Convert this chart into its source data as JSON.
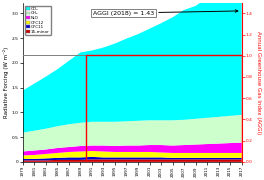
{
  "years": [
    1979,
    1981,
    1983,
    1985,
    1987,
    1989,
    1991,
    1993,
    1995,
    1997,
    1999,
    2001,
    2003,
    2005,
    2007,
    2009,
    2011,
    2013,
    2015,
    2017
  ],
  "CO2": [
    0.85,
    0.95,
    1.05,
    1.15,
    1.28,
    1.42,
    1.44,
    1.5,
    1.58,
    1.67,
    1.75,
    1.85,
    1.96,
    2.08,
    2.22,
    2.28,
    2.42,
    2.54,
    2.68,
    2.82
  ],
  "CH4": [
    0.38,
    0.4,
    0.42,
    0.44,
    0.46,
    0.47,
    0.48,
    0.48,
    0.49,
    0.49,
    0.5,
    0.5,
    0.5,
    0.51,
    0.51,
    0.52,
    0.53,
    0.54,
    0.55,
    0.56
  ],
  "N2O": [
    0.08,
    0.09,
    0.09,
    0.1,
    0.1,
    0.11,
    0.11,
    0.12,
    0.12,
    0.13,
    0.13,
    0.14,
    0.15,
    0.15,
    0.16,
    0.17,
    0.18,
    0.19,
    0.2,
    0.21
  ],
  "CFC12": [
    0.07,
    0.08,
    0.09,
    0.1,
    0.11,
    0.12,
    0.12,
    0.12,
    0.11,
    0.11,
    0.11,
    0.11,
    0.1,
    0.1,
    0.1,
    0.1,
    0.1,
    0.1,
    0.1,
    0.1
  ],
  "CFC11": [
    0.03,
    0.03,
    0.04,
    0.04,
    0.05,
    0.05,
    0.05,
    0.04,
    0.04,
    0.04,
    0.04,
    0.04,
    0.04,
    0.03,
    0.03,
    0.03,
    0.03,
    0.03,
    0.03,
    0.03
  ],
  "others": [
    0.03,
    0.03,
    0.03,
    0.04,
    0.04,
    0.04,
    0.05,
    0.05,
    0.05,
    0.05,
    0.05,
    0.05,
    0.05,
    0.05,
    0.05,
    0.05,
    0.05,
    0.05,
    0.05,
    0.05
  ],
  "colors": {
    "CO2": "#00FFFF",
    "CH4": "#CCFFCC",
    "N2O": "#FF00FF",
    "CFC12": "#FFFF00",
    "CFC11": "#0000CC",
    "others": "#CC0000"
  },
  "title": "AGGI (2018) = 1.43",
  "ylabel_left": "Radiative Forcing (W m⁻²)",
  "ylabel_right": "Annual Greenhouse Gas Index (AGGI)",
  "xlim": [
    1979,
    2017
  ],
  "ylim_left": [
    0,
    3.2
  ],
  "ylim_right": [
    0.0,
    1.493
  ],
  "background_color": "#ffffff",
  "legend_labels": [
    "CO₂",
    "CH₄",
    "N₂O",
    "CFC12",
    "CFC11",
    "15-minor"
  ]
}
